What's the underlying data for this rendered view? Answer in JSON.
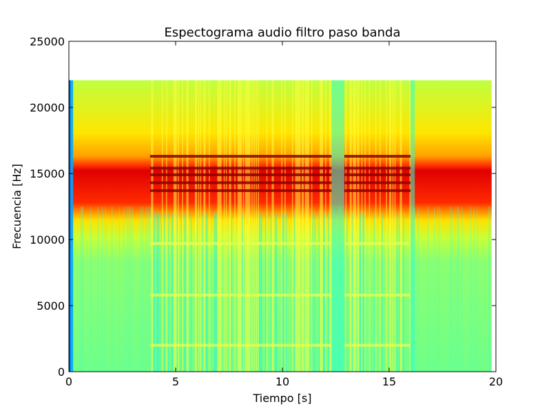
{
  "chart_data": {
    "type": "heatmap",
    "title": "Espectograma audio filtro paso banda",
    "xlabel": "Tiempo [s]",
    "ylabel": "Frecuencia [Hz]",
    "xlim": [
      0,
      20
    ],
    "ylim": [
      0,
      25000
    ],
    "x_ticks": [
      0,
      5,
      10,
      15,
      20
    ],
    "x_tick_labels": [
      "0",
      "5",
      "10",
      "15",
      "20"
    ],
    "y_ticks": [
      0,
      5000,
      10000,
      15000,
      20000,
      25000
    ],
    "y_tick_labels": [
      "0",
      "5000",
      "10000",
      "15000",
      "20000",
      "25000"
    ],
    "colormap": "jet",
    "grid": false,
    "legend": "none",
    "spectrogram": {
      "time_range_s": [
        0,
        19.8
      ],
      "freq_range_hz": [
        0,
        22050
      ],
      "passband_hz": [
        12800,
        16800
      ],
      "background_level": "green-cyan",
      "voiced_segments_s": [
        [
          3.8,
          12.3
        ],
        [
          12.9,
          16.0
        ]
      ],
      "passband_rows_hz": [
        13700,
        14300,
        14900,
        15400,
        16300
      ],
      "low_rows_hz": [
        2000,
        5800,
        9700
      ],
      "quiet_intervals_s": [
        [
          12.3,
          12.9
        ],
        [
          16.0,
          16.2
        ]
      ]
    }
  }
}
